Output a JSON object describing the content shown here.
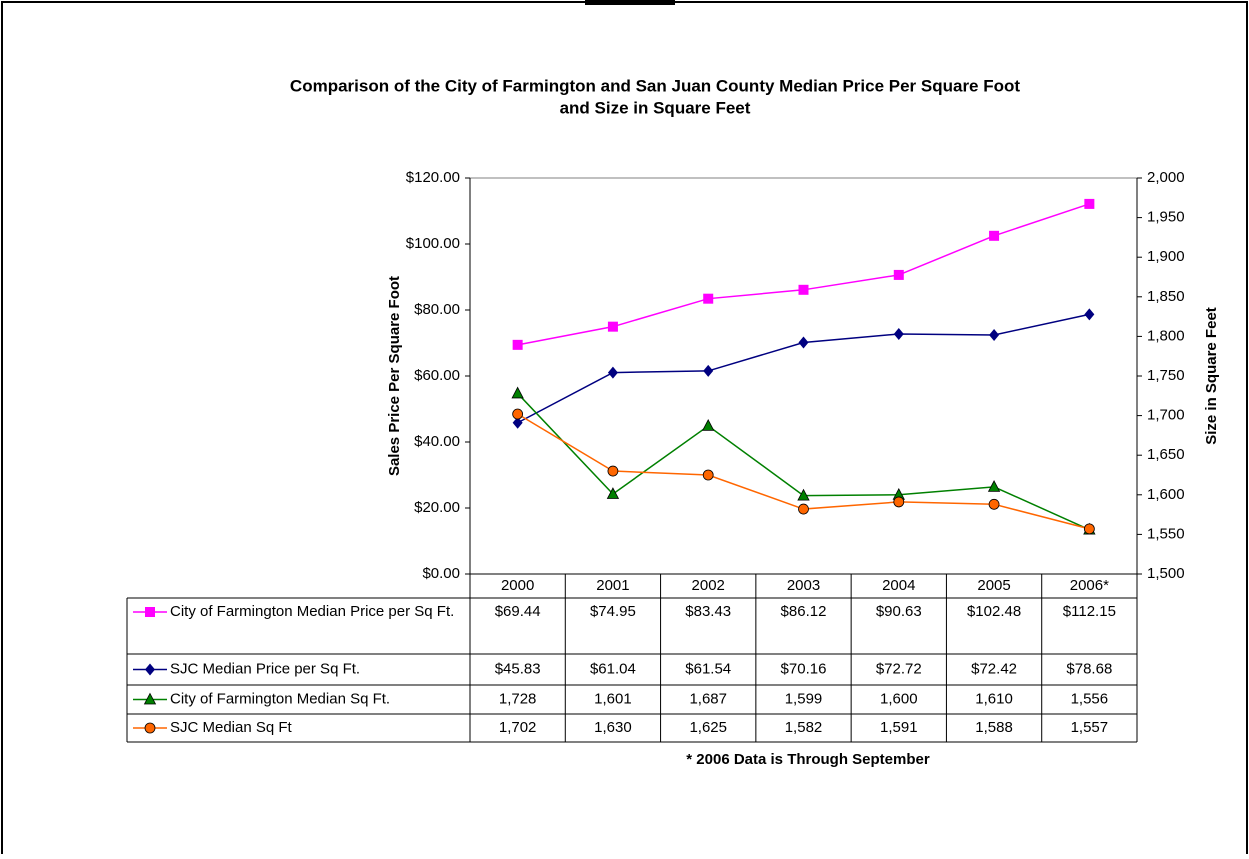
{
  "chart_data": {
    "type": "line",
    "title": [
      "Comparison of the City of Farmington and San Juan County Median Price Per Square Foot",
      "and Size in Square Feet"
    ],
    "y_label": "Sales Price Per Square Foot",
    "y2_label": "Size in Square Feet",
    "categories": [
      "2000",
      "2001",
      "2002",
      "2003",
      "2004",
      "2005",
      "2006*"
    ],
    "ylim": [
      0,
      120
    ],
    "yticks": [
      {
        "value": 0,
        "label": "$0.00"
      },
      {
        "value": 20,
        "label": "$20.00"
      },
      {
        "value": 40,
        "label": "$40.00"
      },
      {
        "value": 60,
        "label": "$60.00"
      },
      {
        "value": 80,
        "label": "$80.00"
      },
      {
        "value": 100,
        "label": "$100.00"
      },
      {
        "value": 120,
        "label": "$120.00"
      }
    ],
    "y2lim": [
      1500,
      2000
    ],
    "y2ticks": [
      {
        "value": 1500,
        "label": "1,500"
      },
      {
        "value": 1550,
        "label": "1,550"
      },
      {
        "value": 1600,
        "label": "1,600"
      },
      {
        "value": 1650,
        "label": "1,650"
      },
      {
        "value": 1700,
        "label": "1,700"
      },
      {
        "value": 1750,
        "label": "1,750"
      },
      {
        "value": 1800,
        "label": "1,800"
      },
      {
        "value": 1850,
        "label": "1,850"
      },
      {
        "value": 1900,
        "label": "1,900"
      },
      {
        "value": 1950,
        "label": "1,950"
      },
      {
        "value": 2000,
        "label": "2,000"
      }
    ],
    "series": [
      {
        "name": "City of Farmington Median Price per Sq Ft.",
        "color": "#ff00ff",
        "marker": "square",
        "axis": "y",
        "values": [
          69.44,
          74.95,
          83.43,
          86.12,
          90.63,
          102.48,
          112.15
        ],
        "value_labels": [
          "$69.44",
          "$74.95",
          "$83.43",
          "$86.12",
          "$90.63",
          "$102.48",
          "$112.15"
        ]
      },
      {
        "name": "SJC Median Price per Sq Ft.",
        "color": "#000080",
        "marker": "diamond",
        "axis": "y",
        "values": [
          45.83,
          61.04,
          61.54,
          70.16,
          72.72,
          72.42,
          78.68
        ],
        "value_labels": [
          "$45.83",
          "$61.04",
          "$61.54",
          "$70.16",
          "$72.72",
          "$72.42",
          "$78.68"
        ]
      },
      {
        "name": "City of Farmington Median Sq Ft.",
        "color": "#008000",
        "marker": "triangle",
        "axis": "y2",
        "values": [
          1728,
          1601,
          1687,
          1599,
          1600,
          1610,
          1556
        ],
        "value_labels": [
          "1,728",
          "1,601",
          "1,687",
          "1,599",
          "1,600",
          "1,610",
          "1,556"
        ]
      },
      {
        "name": "SJC Median Sq Ft",
        "color": "#ff6600",
        "marker": "circle",
        "axis": "y2",
        "values": [
          1702,
          1630,
          1625,
          1582,
          1591,
          1588,
          1557
        ],
        "value_labels": [
          "1,702",
          "1,630",
          "1,625",
          "1,582",
          "1,591",
          "1,588",
          "1,557"
        ]
      }
    ],
    "annotation": "* 2006 Data is Through September"
  }
}
